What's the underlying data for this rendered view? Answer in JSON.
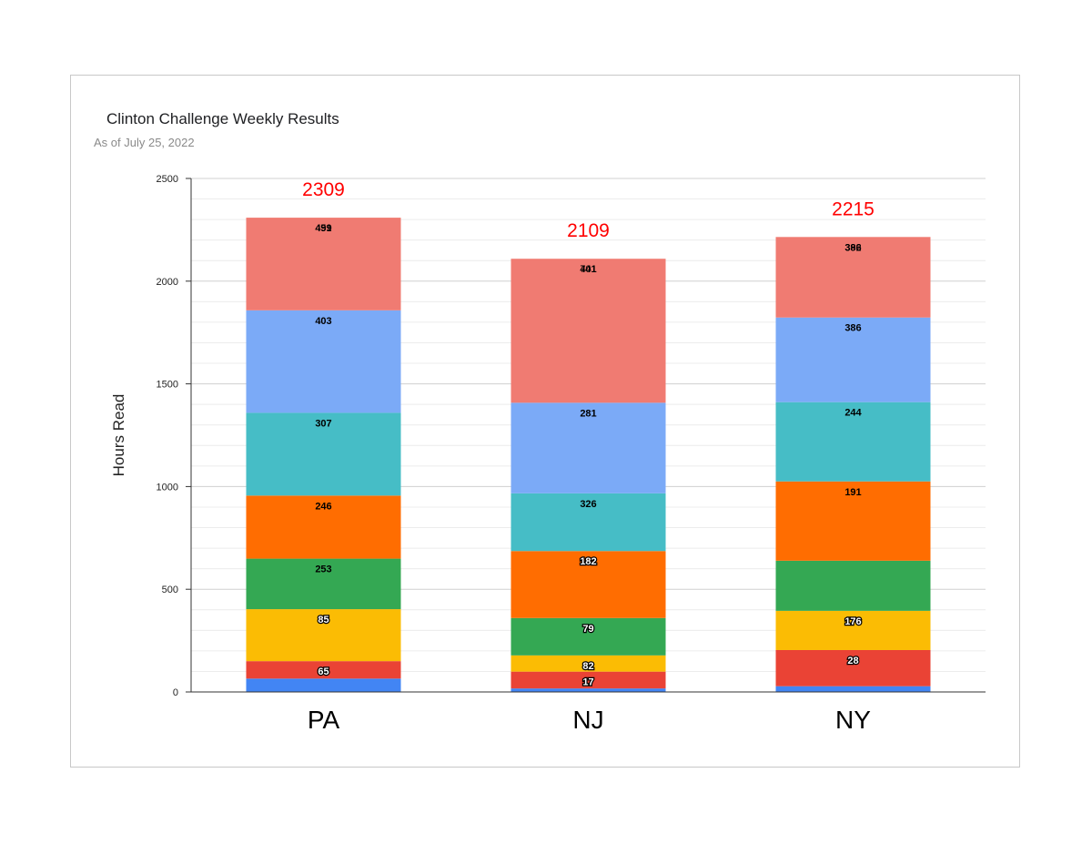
{
  "chart_data": {
    "type": "bar",
    "stacked": true,
    "title": "Clinton Challenge Weekly Results",
    "subtitle": "As of July 25, 2022",
    "ylabel": "Hours Read",
    "xlabel": "",
    "ylim": [
      0,
      2500
    ],
    "yticks": [
      "0",
      "500",
      "1000",
      "1500",
      "2000",
      "2500"
    ],
    "grid": true,
    "categories": [
      "PA",
      "NJ",
      "NY"
    ],
    "totals": [
      "2309",
      "2109",
      "2215"
    ],
    "total_color": "#ff0000",
    "series": [
      {
        "color": "#4285f4",
        "values": [
          65,
          17,
          28
        ],
        "labels": [
          "",
          "",
          ""
        ],
        "label_style": "white"
      },
      {
        "color": "#ea4335",
        "values": [
          85,
          82,
          176
        ],
        "labels": [
          "65",
          "17",
          "28"
        ],
        "label_style": "white"
      },
      {
        "color": "#fbbc04",
        "values": [
          253,
          79,
          191
        ],
        "labels": [
          "85",
          "82",
          "176"
        ],
        "label_style": "white"
      },
      {
        "color": "#34a853",
        "values": [
          246,
          182,
          244
        ],
        "labels": [
          "253",
          "79",
          ""
        ],
        "label_style": "mixed"
      },
      {
        "color": "#ff6d01",
        "values": [
          307,
          326,
          386
        ],
        "labels": [
          "246",
          "182",
          "191"
        ],
        "label_style": "mixed"
      },
      {
        "color": "#46bdc6",
        "values": [
          403,
          281,
          386
        ],
        "labels": [
          "307",
          "326",
          "244"
        ],
        "label_style": "black"
      },
      {
        "color": "#7baaf7",
        "values": [
          499,
          441,
          412
        ],
        "labels": [
          "403",
          "281",
          "386"
        ],
        "label_style": "black"
      },
      {
        "color": "#f07b72",
        "values": [
          451,
          701,
          392
        ],
        "labels": [
          "499",
          "441",
          "386"
        ],
        "label_style": "black"
      }
    ],
    "top_labels": [
      "451",
      "701",
      "392"
    ]
  }
}
